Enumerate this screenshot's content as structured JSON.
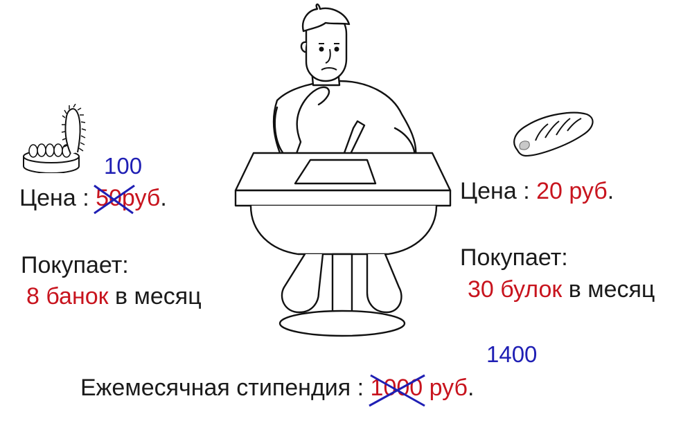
{
  "left": {
    "item_icon": "sardine-can-icon",
    "price_label": "Цена :",
    "price_old": "50",
    "price_new": "100",
    "currency": "руб",
    "period": ".",
    "buys_label": "Покупает:",
    "buys_quantity": "8 банок",
    "buys_suffix": "в месяц"
  },
  "right": {
    "item_icon": "bread-loaf-icon",
    "price_label": "Цена :",
    "price_value": "20 руб",
    "period": ".",
    "buys_label": "Покупает:",
    "buys_quantity": "30 булок",
    "buys_suffix": "в месяц"
  },
  "stipend": {
    "label": "Ежемесячная стипендия :",
    "old_value": "1000",
    "new_value": "1400",
    "currency": "руб",
    "period": "."
  },
  "illustration": "student-at-desk-drawing",
  "colors": {
    "highlight": "#c8141e",
    "correction": "#1f1fb4"
  }
}
